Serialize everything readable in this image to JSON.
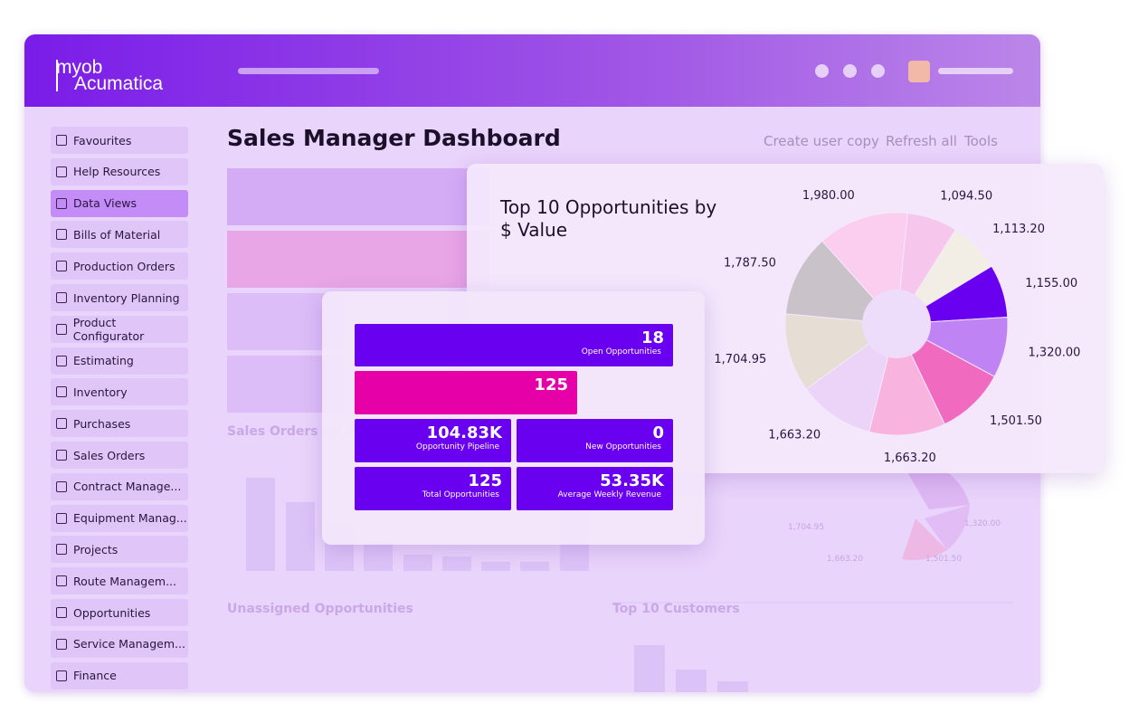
{
  "brand": {
    "top": "myob",
    "bottom": "Acumatica"
  },
  "header": {
    "title": "Sales Manager Dashboard",
    "actions": [
      "Create user copy",
      "Refresh all",
      "Tools"
    ]
  },
  "sidebar": {
    "items": [
      "Favourites",
      "Help Resources",
      "Data Views",
      "Bills of Material",
      "Production Orders",
      "Inventory Planning",
      "Product Configurator",
      "Estimating",
      "Inventory",
      "Purchases",
      "Sales Orders",
      "Contract Manage...",
      "Equipment Manag...",
      "Projects",
      "Route Managem...",
      "Opportunities",
      "Service Managem...",
      "Finance"
    ],
    "active": "Data Views"
  },
  "sections": [
    "Sales Orders by Vo",
    "Unassigned Opportunities",
    "Top 10 Customers"
  ],
  "background_pie_labels": [
    "1,704.95",
    "1,320.00",
    "1,663.20",
    "1,501.50"
  ],
  "kpi_card": {
    "tiles": [
      {
        "value": "18",
        "label": "Open Opportunities"
      },
      {
        "value": "125"
      },
      {
        "value": "104.83K",
        "label": "Opportunity Pipeline"
      },
      {
        "value": "0",
        "label": "New Opportunities"
      },
      {
        "value": "125",
        "label": "Total Opportunities"
      },
      {
        "value": "53.35K",
        "label": "Average Weekly Revenue"
      }
    ]
  },
  "pie_card": {
    "type": "pie",
    "title": "Top 10 Opportunities by $ Value",
    "values": [
      1094.5,
      1113.2,
      1155.0,
      1320.0,
      1501.5,
      1663.2,
      1663.2,
      1704.95,
      1787.5,
      1980.0
    ],
    "value_labels": [
      "1,094.50",
      "1,113.20",
      "1,155.00",
      "1,320.00",
      "1,501.50",
      "1,663.20",
      "1,663.20",
      "1,704.95",
      "1,787.50",
      "1,980.00"
    ],
    "colors": [
      "#f7c6ec",
      "#f2eee6",
      "#6a00f0",
      "#c083f3",
      "#f06bc0",
      "#f8b3df",
      "#ecd3f8",
      "#e6ddd4",
      "#c9c3c9",
      "#fbcdef"
    ]
  }
}
